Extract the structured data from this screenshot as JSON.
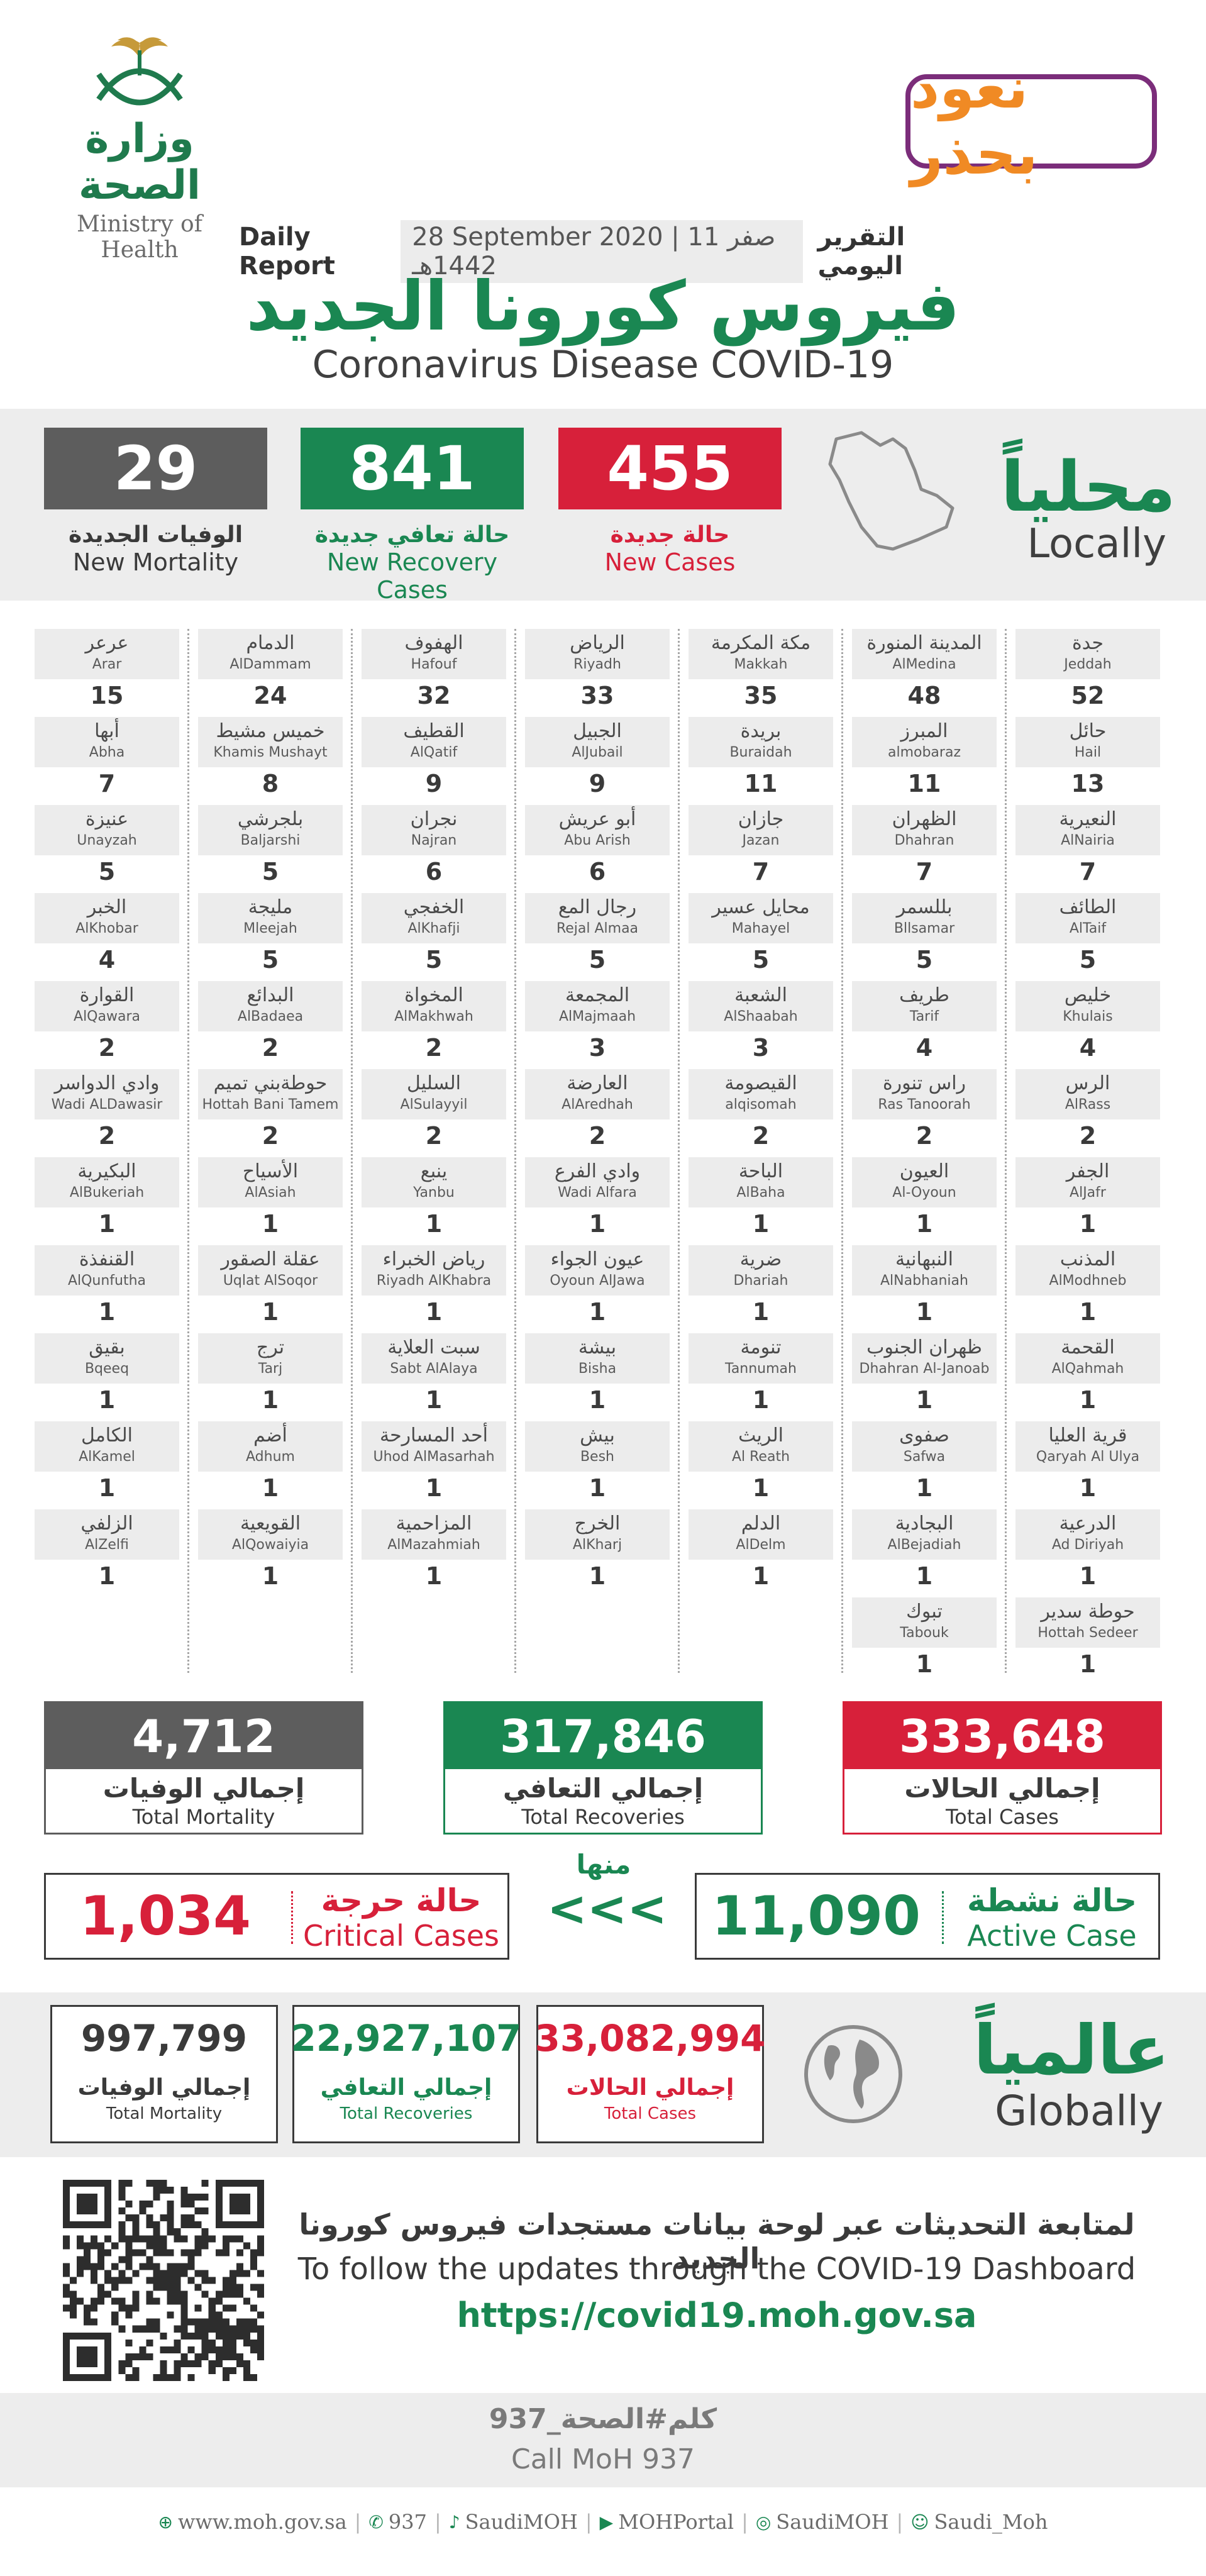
{
  "header": {
    "moh_logo_ar": "وزارة الصحة",
    "moh_logo_en": "Ministry of Health",
    "campaign_ar": "نعود بحذر",
    "report_en": "Daily Report",
    "report_date": "28 September 2020 | 11 صفر 1442هـ",
    "report_ar": "التقرير اليومي",
    "title_ar": "فيروس كورونا الجديد",
    "title_en": "Coronavirus Disease COVID-19"
  },
  "colors": {
    "red": "#d7203a",
    "green": "#1a8752",
    "gray": "#5d5d5d",
    "band": "#ededed"
  },
  "local": {
    "heading_ar": "محلياً",
    "heading_en": "Locally",
    "map_icon": "saudi-map-icon",
    "new_cases": {
      "value": "455",
      "label_ar": "حالة جديدة",
      "label_en": "New Cases"
    },
    "new_recoveries": {
      "value": "841",
      "label_ar": "حالة تعافي جديدة",
      "label_en": "New Recovery Cases"
    },
    "new_mortality": {
      "value": "29",
      "label_ar": "الوفيات الجديدة",
      "label_en": "New Mortality"
    }
  },
  "city_columns": [
    [
      {
        "ar": "جدة",
        "en": "Jeddah",
        "n": "52"
      },
      {
        "ar": "حائل",
        "en": "Hail",
        "n": "13"
      },
      {
        "ar": "النعيرية",
        "en": "AlNairia",
        "n": "7"
      },
      {
        "ar": "الطائف",
        "en": "AlTaif",
        "n": "5"
      },
      {
        "ar": "خليص",
        "en": "Khulais",
        "n": "4"
      },
      {
        "ar": "الرس",
        "en": "AlRass",
        "n": "2"
      },
      {
        "ar": "الجفر",
        "en": "AlJafr",
        "n": "1"
      },
      {
        "ar": "المذنب",
        "en": "AlModhneb",
        "n": "1"
      },
      {
        "ar": "القحمة",
        "en": "AlQahmah",
        "n": "1"
      },
      {
        "ar": "قرية العليا",
        "en": "Qaryah Al Ulya",
        "n": "1"
      },
      {
        "ar": "الدرعية",
        "en": "Ad Diriyah",
        "n": "1"
      },
      {
        "ar": "حوطة سدير",
        "en": "Hottah Sedeer",
        "n": "1"
      }
    ],
    [
      {
        "ar": "المدينة المنورة",
        "en": "AlMedina",
        "n": "48"
      },
      {
        "ar": "المبرز",
        "en": "almobaraz",
        "n": "11"
      },
      {
        "ar": "الظهران",
        "en": "Dhahran",
        "n": "7"
      },
      {
        "ar": "بللسمر",
        "en": "Bllsamar",
        "n": "5"
      },
      {
        "ar": "طريف",
        "en": "Tarif",
        "n": "4"
      },
      {
        "ar": "راس تنورة",
        "en": "Ras Tanoorah",
        "n": "2"
      },
      {
        "ar": "العيون",
        "en": "Al-Oyoun",
        "n": "1"
      },
      {
        "ar": "النبهانية",
        "en": "AlNabhaniah",
        "n": "1"
      },
      {
        "ar": "ظهران الجنوب",
        "en": "Dhahran Al-Janoab",
        "n": "1"
      },
      {
        "ar": "صفوى",
        "en": "Safwa",
        "n": "1"
      },
      {
        "ar": "البجادية",
        "en": "AlBejadiah",
        "n": "1"
      },
      {
        "ar": "تبوك",
        "en": "Tabouk",
        "n": "1"
      }
    ],
    [
      {
        "ar": "مكة المكرمة",
        "en": "Makkah",
        "n": "35"
      },
      {
        "ar": "بريدة",
        "en": "Buraidah",
        "n": "11"
      },
      {
        "ar": "جازان",
        "en": "Jazan",
        "n": "7"
      },
      {
        "ar": "محايل عسير",
        "en": "Mahayel",
        "n": "5"
      },
      {
        "ar": "الشعبة",
        "en": "AlShaabah",
        "n": "3"
      },
      {
        "ar": "القيصومة",
        "en": "alqisomah",
        "n": "2"
      },
      {
        "ar": "الباحة",
        "en": "AlBaha",
        "n": "1"
      },
      {
        "ar": "ضرية",
        "en": "Dhariah",
        "n": "1"
      },
      {
        "ar": "تنومة",
        "en": "Tannumah",
        "n": "1"
      },
      {
        "ar": "الريث",
        "en": "Al Reath",
        "n": "1"
      },
      {
        "ar": "الدلم",
        "en": "AlDelm",
        "n": "1"
      }
    ],
    [
      {
        "ar": "الرياض",
        "en": "Riyadh",
        "n": "33"
      },
      {
        "ar": "الجبيل",
        "en": "AlJubail",
        "n": "9"
      },
      {
        "ar": "أبو عريش",
        "en": "Abu Arish",
        "n": "6"
      },
      {
        "ar": "رجال المع",
        "en": "Rejal Almaa",
        "n": "5"
      },
      {
        "ar": "المجمعة",
        "en": "AlMajmaah",
        "n": "3"
      },
      {
        "ar": "العارضة",
        "en": "AlAredhah",
        "n": "2"
      },
      {
        "ar": "وادي الفرع",
        "en": "Wadi Alfara",
        "n": "1"
      },
      {
        "ar": "عيون الجواء",
        "en": "Oyoun AlJawa",
        "n": "1"
      },
      {
        "ar": "بيشة",
        "en": "Bisha",
        "n": "1"
      },
      {
        "ar": "بيش",
        "en": "Besh",
        "n": "1"
      },
      {
        "ar": "الخرج",
        "en": "AlKharj",
        "n": "1"
      }
    ],
    [
      {
        "ar": "الهفوف",
        "en": "Hafouf",
        "n": "32"
      },
      {
        "ar": "القطيف",
        "en": "AlQatif",
        "n": "9"
      },
      {
        "ar": "نجران",
        "en": "Najran",
        "n": "6"
      },
      {
        "ar": "الخفجي",
        "en": "AlKhafji",
        "n": "5"
      },
      {
        "ar": "المخواة",
        "en": "AlMakhwah",
        "n": "2"
      },
      {
        "ar": "السليل",
        "en": "AlSulayyil",
        "n": "2"
      },
      {
        "ar": "ينبع",
        "en": "Yanbu",
        "n": "1"
      },
      {
        "ar": "رياض الخبراء",
        "en": "Riyadh AlKhabra",
        "n": "1"
      },
      {
        "ar": "سبت العلاية",
        "en": "Sabt AlAlaya",
        "n": "1"
      },
      {
        "ar": "أحد المسارحة",
        "en": "Uhod AlMasarhah",
        "n": "1"
      },
      {
        "ar": "المزاحمية",
        "en": "AlMazahmiah",
        "n": "1"
      }
    ],
    [
      {
        "ar": "الدمام",
        "en": "AlDammam",
        "n": "24"
      },
      {
        "ar": "خميس مشيط",
        "en": "Khamis Mushayt",
        "n": "8"
      },
      {
        "ar": "بلجرشي",
        "en": "Baljarshi",
        "n": "5"
      },
      {
        "ar": "مليجة",
        "en": "Mleejah",
        "n": "5"
      },
      {
        "ar": "البدائع",
        "en": "AlBadaea",
        "n": "2"
      },
      {
        "ar": "حوطةبني تميم",
        "en": "Hottah Bani Tamem",
        "n": "2"
      },
      {
        "ar": "الأسياح",
        "en": "AlAsiah",
        "n": "1"
      },
      {
        "ar": "عقلة الصقور",
        "en": "Uqlat AlSoqor",
        "n": "1"
      },
      {
        "ar": "ترج",
        "en": "Tarj",
        "n": "1"
      },
      {
        "ar": "أضم",
        "en": "Adhum",
        "n": "1"
      },
      {
        "ar": "القويعية",
        "en": "AlQowaiyia",
        "n": "1"
      }
    ],
    [
      {
        "ar": "عرعر",
        "en": "Arar",
        "n": "15"
      },
      {
        "ar": "أبها",
        "en": "Abha",
        "n": "7"
      },
      {
        "ar": "عنيزة",
        "en": "Unayzah",
        "n": "5"
      },
      {
        "ar": "الخبر",
        "en": "AlKhobar",
        "n": "4"
      },
      {
        "ar": "القوارة",
        "en": "AlQawara",
        "n": "2"
      },
      {
        "ar": "وادي الدواسر",
        "en": "Wadi ALDawasir",
        "n": "2"
      },
      {
        "ar": "البكيرية",
        "en": "AlBukeriah",
        "n": "1"
      },
      {
        "ar": "القنفذة",
        "en": "AlQunfutha",
        "n": "1"
      },
      {
        "ar": "بقيق",
        "en": "Bqeeq",
        "n": "1"
      },
      {
        "ar": "الكامل",
        "en": "AlKamel",
        "n": "1"
      },
      {
        "ar": "الزلفي",
        "en": "AlZelfi",
        "n": "1"
      }
    ]
  ],
  "totals": {
    "cases": {
      "value": "333,648",
      "label_ar": "إجمالي الحالات",
      "label_en": "Total Cases"
    },
    "recoveries": {
      "value": "317,846",
      "label_ar": "إجمالي التعافي",
      "label_en": "Total Recoveries"
    },
    "mortality": {
      "value": "4,712",
      "label_ar": "إجمالي الوفيات",
      "label_en": "Total Mortality"
    },
    "active": {
      "value": "11,090",
      "label_ar": "حالة نشطة",
      "label_en": "Active Case"
    },
    "critical": {
      "value": "1,034",
      "label_ar": "حالة حرجة",
      "label_en": "Critical Cases"
    },
    "of_which_ar": "منها",
    "arrows": "<<<"
  },
  "global": {
    "heading_ar": "عالمياً",
    "heading_en": "Globally",
    "globe_icon": "globe-icon",
    "cases": {
      "value": "33,082,994",
      "label_ar": "إجمالي الحالات",
      "label_en": "Total Cases"
    },
    "recoveries": {
      "value": "22,927,107",
      "label_ar": "إجمالي التعافي",
      "label_en": "Total Recoveries"
    },
    "mortality": {
      "value": "997,799",
      "label_ar": "إجمالي الوفيات",
      "label_en": "Total Mortality"
    }
  },
  "dashboard": {
    "text_ar": "لمتابعة التحديثات عبر لوحة بيانات مستجدات فيروس كورونا الجديد",
    "text_en": "To follow the updates through the COVID-19 Dashboard",
    "url": "https://covid19.moh.gov.sa"
  },
  "call": {
    "text_ar": "كلم#الصحة_937",
    "text_en": "Call MoH 937"
  },
  "footer": [
    {
      "icon": "globe-icon",
      "text": "www.moh.gov.sa"
    },
    {
      "icon": "phone-icon",
      "text": "937"
    },
    {
      "icon": "twitter-icon",
      "text": "SaudiMOH"
    },
    {
      "icon": "youtube-icon",
      "text": "MOHPortal"
    },
    {
      "icon": "instagram-icon",
      "text": "SaudiMOH"
    },
    {
      "icon": "snapchat-icon",
      "text": "Saudi_Moh"
    }
  ]
}
